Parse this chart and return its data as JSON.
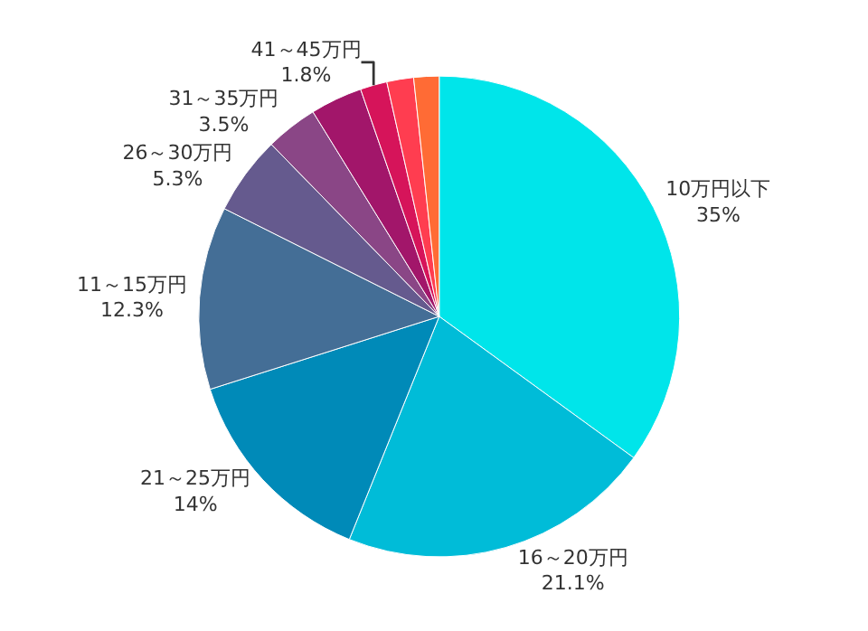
{
  "chart_data": {
    "type": "pie",
    "categories": [
      "10万円以下",
      "16～20万円",
      "21～25万円",
      "11～15万円",
      "26～30万円",
      "31～35万円",
      null,
      "41～45万円",
      null,
      null
    ],
    "values": [
      35,
      21.1,
      14,
      12.3,
      5.3,
      3.5,
      3.5,
      1.8,
      1.8,
      1.7
    ],
    "value_labels": [
      "35%",
      "21.1%",
      "14%",
      "12.3%",
      "5.3%",
      "3.5%",
      null,
      "1.8%",
      null,
      null
    ],
    "colors": [
      "#00e5ea",
      "#00bcd8",
      "#008ab8",
      "#446e96",
      "#655a8e",
      "#8a4686",
      "#a2166a",
      "#d6145a",
      "#ff3d50",
      "#ff6b35"
    ],
    "legend": false
  }
}
